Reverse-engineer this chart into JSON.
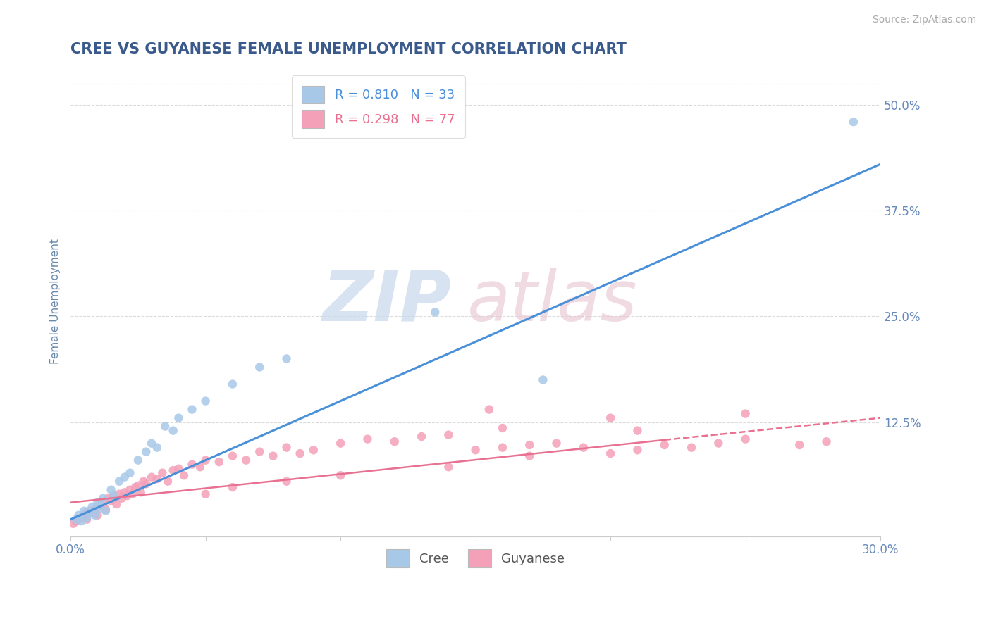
{
  "title": "CREE VS GUYANESE FEMALE UNEMPLOYMENT CORRELATION CHART",
  "source": "Source: ZipAtlas.com",
  "ylabel": "Female Unemployment",
  "xlim": [
    0.0,
    0.3
  ],
  "ylim": [
    -0.01,
    0.545
  ],
  "ytick_positions": [
    0.125,
    0.25,
    0.375,
    0.5
  ],
  "ytick_labels": [
    "12.5%",
    "25.0%",
    "37.5%",
    "50.0%"
  ],
  "title_color": "#3a5a8c",
  "axis_label_color": "#6688aa",
  "tick_color": "#6688bb",
  "background_color": "#ffffff",
  "grid_color": "#cccccc",
  "cree_color": "#a8c8e8",
  "guyanese_color": "#f4a0b8",
  "cree_line_color": "#4a90d9",
  "guyanese_line_color": "#e87090",
  "legend_label_1": "R = 0.810   N = 33",
  "legend_label_2": "R = 0.298   N = 77",
  "legend_bottom_labels": [
    "Cree",
    "Guyanese"
  ],
  "cree_scatter_x": [
    0.002,
    0.003,
    0.004,
    0.005,
    0.006,
    0.007,
    0.008,
    0.009,
    0.01,
    0.01,
    0.011,
    0.012,
    0.013,
    0.015,
    0.016,
    0.018,
    0.02,
    0.022,
    0.025,
    0.028,
    0.03,
    0.032,
    0.035,
    0.038,
    0.04,
    0.045,
    0.05,
    0.06,
    0.07,
    0.08,
    0.135,
    0.175,
    0.29
  ],
  "cree_scatter_y": [
    0.01,
    0.015,
    0.008,
    0.02,
    0.012,
    0.018,
    0.025,
    0.015,
    0.03,
    0.022,
    0.028,
    0.035,
    0.02,
    0.045,
    0.038,
    0.055,
    0.06,
    0.065,
    0.08,
    0.09,
    0.1,
    0.095,
    0.12,
    0.115,
    0.13,
    0.14,
    0.15,
    0.17,
    0.19,
    0.2,
    0.255,
    0.175,
    0.48
  ],
  "guyanese_scatter_x": [
    0.001,
    0.002,
    0.003,
    0.004,
    0.005,
    0.006,
    0.006,
    0.007,
    0.008,
    0.009,
    0.01,
    0.01,
    0.011,
    0.012,
    0.013,
    0.014,
    0.015,
    0.016,
    0.017,
    0.018,
    0.019,
    0.02,
    0.021,
    0.022,
    0.023,
    0.024,
    0.025,
    0.026,
    0.027,
    0.028,
    0.03,
    0.032,
    0.034,
    0.036,
    0.038,
    0.04,
    0.042,
    0.045,
    0.048,
    0.05,
    0.055,
    0.06,
    0.065,
    0.07,
    0.075,
    0.08,
    0.085,
    0.09,
    0.1,
    0.11,
    0.12,
    0.13,
    0.14,
    0.15,
    0.16,
    0.17,
    0.18,
    0.19,
    0.2,
    0.21,
    0.22,
    0.23,
    0.24,
    0.25,
    0.155,
    0.27,
    0.1,
    0.14,
    0.17,
    0.05,
    0.06,
    0.08,
    0.16,
    0.2,
    0.25,
    0.21,
    0.28
  ],
  "guyanese_scatter_y": [
    0.005,
    0.008,
    0.01,
    0.012,
    0.015,
    0.018,
    0.01,
    0.02,
    0.018,
    0.022,
    0.025,
    0.015,
    0.028,
    0.03,
    0.022,
    0.035,
    0.032,
    0.038,
    0.028,
    0.04,
    0.035,
    0.042,
    0.038,
    0.045,
    0.04,
    0.048,
    0.05,
    0.042,
    0.055,
    0.052,
    0.06,
    0.058,
    0.065,
    0.055,
    0.068,
    0.07,
    0.062,
    0.075,
    0.072,
    0.08,
    0.078,
    0.085,
    0.08,
    0.09,
    0.085,
    0.095,
    0.088,
    0.092,
    0.1,
    0.105,
    0.102,
    0.108,
    0.11,
    0.092,
    0.095,
    0.098,
    0.1,
    0.095,
    0.088,
    0.092,
    0.098,
    0.095,
    0.1,
    0.105,
    0.14,
    0.098,
    0.062,
    0.072,
    0.085,
    0.04,
    0.048,
    0.055,
    0.118,
    0.13,
    0.135,
    0.115,
    0.102
  ],
  "cree_line_x0": 0.0,
  "cree_line_x1": 0.3,
  "cree_line_y0": 0.01,
  "cree_line_y1": 0.43,
  "guyanese_line_x0": 0.0,
  "guyanese_line_x1": 0.3,
  "guyanese_line_y0": 0.03,
  "guyanese_line_y1": 0.13,
  "guyanese_line_solid_x1": 0.22,
  "guyanese_line_solid_y1": 0.104
}
